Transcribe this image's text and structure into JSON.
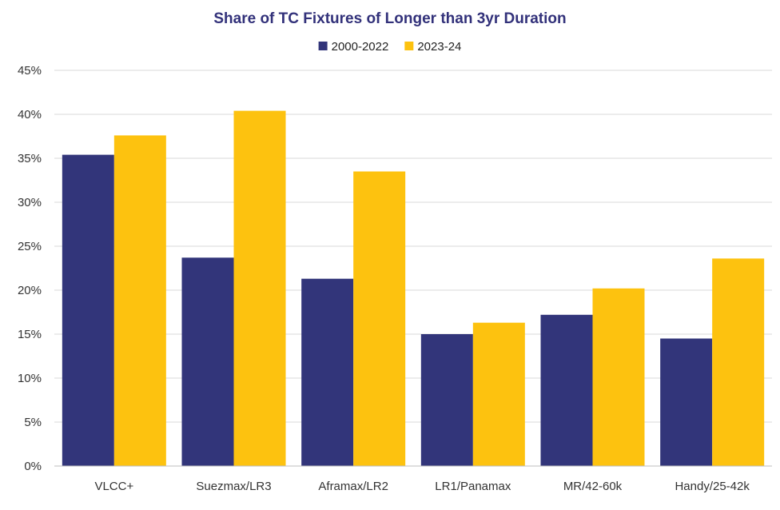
{
  "chart_data": {
    "type": "bar",
    "title": "Share of TC Fixtures of Longer than 3yr Duration",
    "xlabel": "",
    "ylabel": "",
    "categories": [
      "VLCC+",
      "Suezmax/LR3",
      "Aframax/LR2",
      "LR1/Panamax",
      "MR/42-60k",
      "Handy/25-42k"
    ],
    "series": [
      {
        "name": "2000-2022",
        "color": "#32357a",
        "values": [
          35.4,
          23.7,
          21.3,
          15.0,
          17.2,
          14.5
        ]
      },
      {
        "name": "2023-24",
        "color": "#fdc20f",
        "values": [
          37.6,
          40.4,
          33.5,
          16.3,
          20.2,
          23.6
        ]
      }
    ],
    "ylim": [
      0,
      45
    ],
    "yticks": [
      0,
      5,
      10,
      15,
      20,
      25,
      30,
      35,
      40,
      45
    ],
    "ytick_labels": [
      "0%",
      "5%",
      "10%",
      "15%",
      "20%",
      "25%",
      "30%",
      "35%",
      "40%",
      "45%"
    ],
    "grid": true,
    "legend_position": "top-center"
  }
}
